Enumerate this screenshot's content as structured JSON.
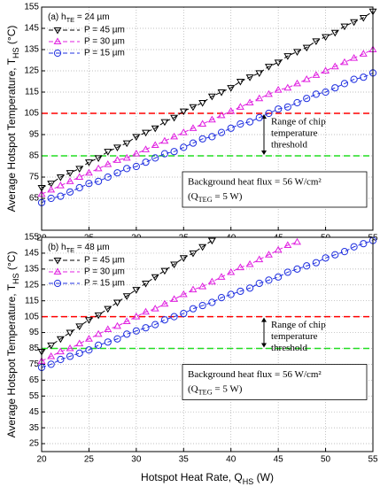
{
  "chart_data": [
    {
      "type": "line",
      "panel": [
        "(a) h",
        "TE",
        " = 24 µm"
      ],
      "ylabel": [
        "Average Hotspot Temperature, T",
        "HS",
        " (°C)"
      ],
      "xlim": [
        20,
        55
      ],
      "xticks": [
        20,
        25,
        30,
        35,
        40,
        45,
        50,
        55
      ],
      "ylim": [
        50,
        155
      ],
      "yticks": [
        65,
        75,
        85,
        95,
        105,
        115,
        125,
        135,
        145,
        155
      ],
      "grid": true,
      "series": [
        {
          "name": "P = 45 µm",
          "color": "#000000",
          "marker": "triangle-down",
          "x": [
            20,
            21,
            22,
            23,
            24,
            25,
            26,
            27,
            28,
            29,
            30,
            31,
            32,
            33,
            34,
            35,
            36,
            37,
            38,
            39,
            40,
            41,
            42,
            43,
            44,
            45,
            46,
            47,
            48,
            49,
            50,
            51,
            52,
            53,
            54,
            55
          ],
          "values": [
            70,
            72,
            75,
            77,
            79,
            82,
            84,
            87,
            89,
            91,
            94,
            96,
            98,
            101,
            103,
            106,
            108,
            110,
            113,
            115,
            117,
            120,
            122,
            124,
            127,
            129,
            132,
            134,
            136,
            139,
            141,
            143,
            146,
            148,
            150,
            153
          ]
        },
        {
          "name": "P = 30 µm",
          "color": "#e020e0",
          "marker": "triangle-up",
          "x": [
            20,
            21,
            22,
            23,
            24,
            25,
            26,
            27,
            28,
            29,
            30,
            31,
            32,
            33,
            34,
            35,
            36,
            37,
            38,
            39,
            40,
            41,
            42,
            43,
            44,
            45,
            46,
            47,
            48,
            49,
            50,
            51,
            52,
            53,
            54,
            55
          ],
          "values": [
            67,
            69,
            71,
            73,
            75,
            77,
            79,
            81,
            83,
            84,
            86,
            88,
            90,
            92,
            94,
            96,
            98,
            100,
            102,
            104,
            106,
            108,
            110,
            112,
            114,
            116,
            117,
            119,
            121,
            123,
            125,
            127,
            129,
            131,
            133,
            135
          ]
        },
        {
          "name": "P = 15 µm",
          "color": "#2030e0",
          "marker": "circle",
          "x": [
            20,
            21,
            22,
            23,
            24,
            25,
            26,
            27,
            28,
            29,
            30,
            31,
            32,
            33,
            34,
            35,
            36,
            37,
            38,
            39,
            40,
            41,
            42,
            43,
            44,
            45,
            46,
            47,
            48,
            49,
            50,
            51,
            52,
            53,
            54,
            55
          ],
          "values": [
            63,
            65,
            66,
            68,
            70,
            72,
            73,
            75,
            77,
            79,
            80,
            82,
            84,
            86,
            87,
            89,
            91,
            93,
            94,
            96,
            98,
            100,
            101,
            103,
            105,
            107,
            108,
            110,
            112,
            114,
            115,
            117,
            119,
            121,
            122,
            124
          ]
        }
      ],
      "hlines": [
        {
          "value": 105,
          "color": "#ff0000"
        },
        {
          "value": 85,
          "color": "#22dd22"
        }
      ],
      "range_text": [
        "Range of chip",
        "temperature",
        "threshold"
      ],
      "box_text": [
        "Background heat flux = 56 W/cm²",
        "(Q",
        "TEG",
        " = 5 W)"
      ]
    },
    {
      "type": "line",
      "panel": [
        "(b) h",
        "TE",
        " = 48 µm"
      ],
      "ylabel": [
        "Average Hotspot Temperature, T",
        "HS",
        " (°C)"
      ],
      "xlabel": [
        "Hotspot Heat Rate, Q",
        "HS",
        " (W)"
      ],
      "xlim": [
        20,
        55
      ],
      "xticks": [
        20,
        25,
        30,
        35,
        40,
        45,
        50,
        55
      ],
      "ylim": [
        20,
        155
      ],
      "yticks": [
        25,
        35,
        45,
        55,
        65,
        75,
        85,
        95,
        105,
        115,
        125,
        135,
        145,
        155
      ],
      "grid": true,
      "series": [
        {
          "name": "P = 45 µm",
          "color": "#000000",
          "marker": "triangle-down",
          "x": [
            20,
            21,
            22,
            23,
            24,
            25,
            26,
            27,
            28,
            29,
            30,
            31,
            32,
            33,
            34,
            35,
            36,
            37,
            38
          ],
          "values": [
            83,
            87,
            91,
            95,
            99,
            103,
            106,
            110,
            114,
            118,
            122,
            126,
            130,
            134,
            138,
            142,
            145,
            149,
            153
          ]
        },
        {
          "name": "P = 30 µm",
          "color": "#e020e0",
          "marker": "triangle-up",
          "x": [
            20,
            21,
            22,
            23,
            24,
            25,
            26,
            27,
            28,
            29,
            30,
            31,
            32,
            33,
            34,
            35,
            36,
            37,
            38,
            39,
            40,
            41,
            42,
            43,
            44,
            45,
            46,
            47
          ],
          "values": [
            77,
            80,
            83,
            85,
            88,
            91,
            94,
            97,
            99,
            102,
            105,
            108,
            110,
            113,
            116,
            119,
            122,
            124,
            127,
            130,
            133,
            136,
            138,
            141,
            144,
            147,
            150,
            152
          ]
        },
        {
          "name": "P = 15 µm",
          "color": "#2030e0",
          "marker": "circle",
          "x": [
            20,
            21,
            22,
            23,
            24,
            25,
            26,
            27,
            28,
            29,
            30,
            31,
            32,
            33,
            34,
            35,
            36,
            37,
            38,
            39,
            40,
            41,
            42,
            43,
            44,
            45,
            46,
            47,
            48,
            49,
            50,
            51,
            52,
            53,
            54,
            55
          ],
          "values": [
            73,
            75,
            78,
            80,
            82,
            84,
            87,
            89,
            91,
            94,
            96,
            98,
            100,
            103,
            105,
            107,
            110,
            112,
            114,
            117,
            119,
            121,
            123,
            126,
            128,
            130,
            133,
            135,
            137,
            139,
            142,
            144,
            146,
            149,
            151,
            153
          ]
        }
      ],
      "hlines": [
        {
          "value": 105,
          "color": "#ff0000"
        },
        {
          "value": 85,
          "color": "#22dd22"
        }
      ],
      "range_text": [
        "Range of chip",
        "temperature",
        "threshold"
      ],
      "box_text": [
        "Background heat flux = 56 W/cm²",
        "(Q",
        "TEG",
        " = 5 W)"
      ]
    }
  ]
}
